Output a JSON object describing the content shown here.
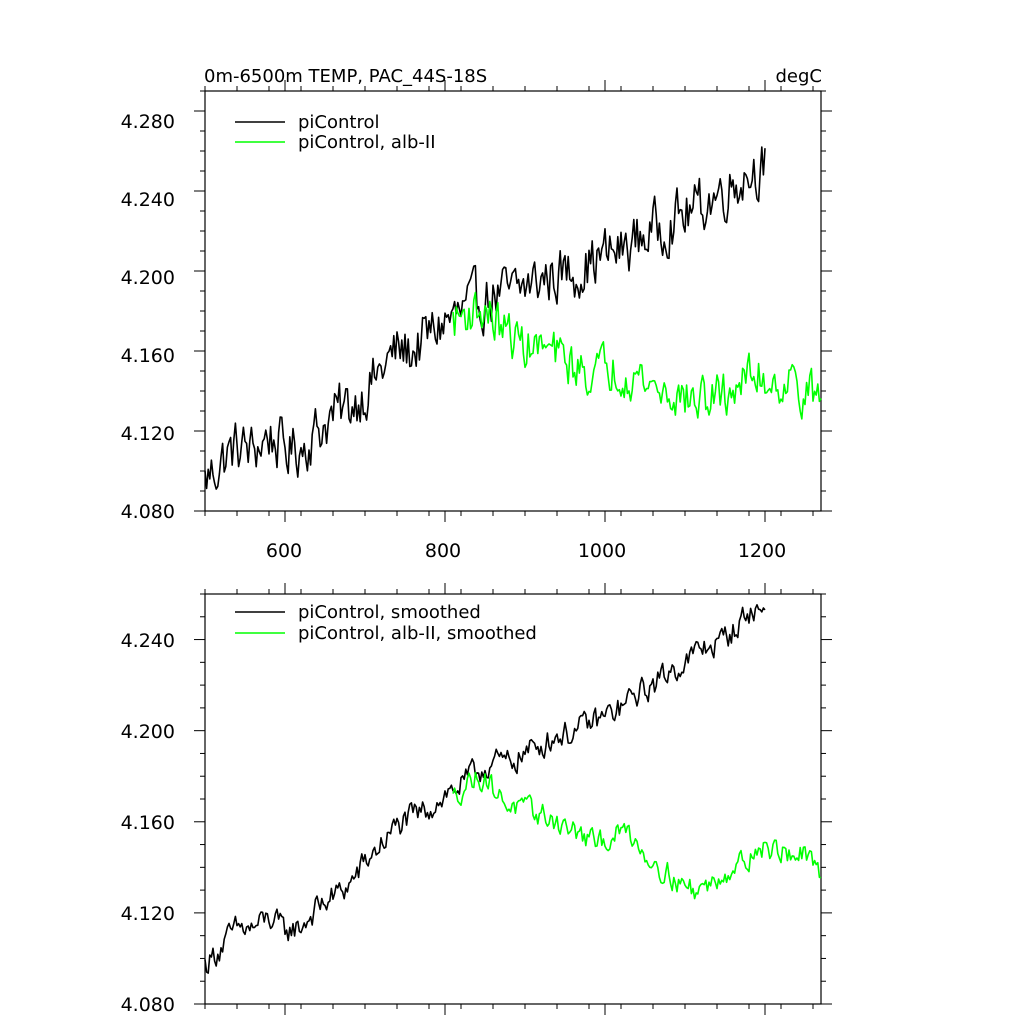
{
  "chart_data": [
    {
      "type": "line",
      "title": "0m-6500m TEMP, PAC_44S-18S",
      "units": "degC",
      "xlim": [
        500,
        1270
      ],
      "ylim": [
        4.08,
        4.29
      ],
      "xticks": [
        600,
        800,
        1000,
        1200
      ],
      "xtick_labels": [
        "600",
        "800",
        "1000",
        "1200"
      ],
      "yticks": [
        4.08,
        4.12,
        4.16,
        4.2,
        4.24,
        4.28
      ],
      "ytick_labels": [
        "4.080",
        "4.120",
        "4.160",
        "4.200",
        "4.240",
        "4.280"
      ],
      "legend_position": "top-left",
      "series": [
        {
          "name": "piControl",
          "color": "#000000",
          "x": [
            500,
            520,
            540,
            560,
            580,
            600,
            620,
            640,
            660,
            680,
            700,
            720,
            740,
            760,
            780,
            800,
            820,
            840,
            860,
            880,
            900,
            920,
            940,
            960,
            980,
            1000,
            1020,
            1040,
            1060,
            1080,
            1100,
            1120,
            1140,
            1160,
            1180,
            1200
          ],
          "values": [
            4.095,
            4.105,
            4.112,
            4.11,
            4.118,
            4.11,
            4.112,
            4.12,
            4.128,
            4.132,
            4.14,
            4.15,
            4.16,
            4.16,
            4.168,
            4.175,
            4.178,
            4.184,
            4.188,
            4.188,
            4.192,
            4.196,
            4.198,
            4.2,
            4.204,
            4.208,
            4.21,
            4.216,
            4.22,
            4.225,
            4.228,
            4.233,
            4.238,
            4.244,
            4.25,
            4.254
          ],
          "noise": 0.012
        },
        {
          "name": "piControl, alb-II",
          "color": "#00ff00",
          "x": [
            810,
            830,
            850,
            870,
            890,
            910,
            930,
            950,
            970,
            990,
            1010,
            1030,
            1050,
            1070,
            1090,
            1110,
            1130,
            1150,
            1170,
            1190,
            1210,
            1230,
            1250,
            1270
          ],
          "values": [
            4.175,
            4.18,
            4.18,
            4.172,
            4.165,
            4.162,
            4.16,
            4.155,
            4.15,
            4.15,
            4.152,
            4.15,
            4.145,
            4.14,
            4.138,
            4.135,
            4.136,
            4.138,
            4.145,
            4.148,
            4.145,
            4.145,
            4.14,
            4.135
          ],
          "noise": 0.01
        }
      ]
    },
    {
      "type": "line",
      "xlim": [
        500,
        1270
      ],
      "ylim": [
        4.08,
        4.26
      ],
      "xticks": [
        600,
        800,
        1000,
        1200
      ],
      "yticks": [
        4.08,
        4.12,
        4.16,
        4.2,
        4.24
      ],
      "ytick_labels": [
        "4.080",
        "4.120",
        "4.160",
        "4.200",
        "4.240"
      ],
      "legend_position": "top-left",
      "series": [
        {
          "name": "piControl, smoothed",
          "color": "#000000",
          "x": [
            500,
            520,
            540,
            560,
            580,
            600,
            620,
            640,
            660,
            680,
            700,
            720,
            740,
            760,
            780,
            800,
            820,
            840,
            860,
            880,
            900,
            920,
            940,
            960,
            980,
            1000,
            1020,
            1040,
            1060,
            1080,
            1100,
            1120,
            1140,
            1160,
            1180,
            1200
          ],
          "values": [
            4.097,
            4.105,
            4.113,
            4.113,
            4.118,
            4.112,
            4.114,
            4.122,
            4.127,
            4.132,
            4.142,
            4.15,
            4.158,
            4.162,
            4.166,
            4.172,
            4.176,
            4.182,
            4.186,
            4.186,
            4.19,
            4.194,
            4.198,
            4.199,
            4.203,
            4.206,
            4.21,
            4.216,
            4.22,
            4.226,
            4.23,
            4.236,
            4.238,
            4.244,
            4.252,
            4.253
          ],
          "noise": 0.005
        },
        {
          "name": "piControl, alb-II, smoothed",
          "color": "#00ff00",
          "x": [
            810,
            830,
            850,
            870,
            890,
            910,
            930,
            950,
            970,
            990,
            1010,
            1030,
            1050,
            1070,
            1090,
            1110,
            1130,
            1150,
            1170,
            1190,
            1210,
            1230,
            1250,
            1270
          ],
          "values": [
            4.17,
            4.178,
            4.18,
            4.17,
            4.166,
            4.164,
            4.162,
            4.158,
            4.154,
            4.15,
            4.154,
            4.156,
            4.146,
            4.14,
            4.134,
            4.13,
            4.132,
            4.138,
            4.142,
            4.148,
            4.148,
            4.146,
            4.145,
            4.135
          ],
          "noise": 0.0045
        }
      ]
    }
  ]
}
